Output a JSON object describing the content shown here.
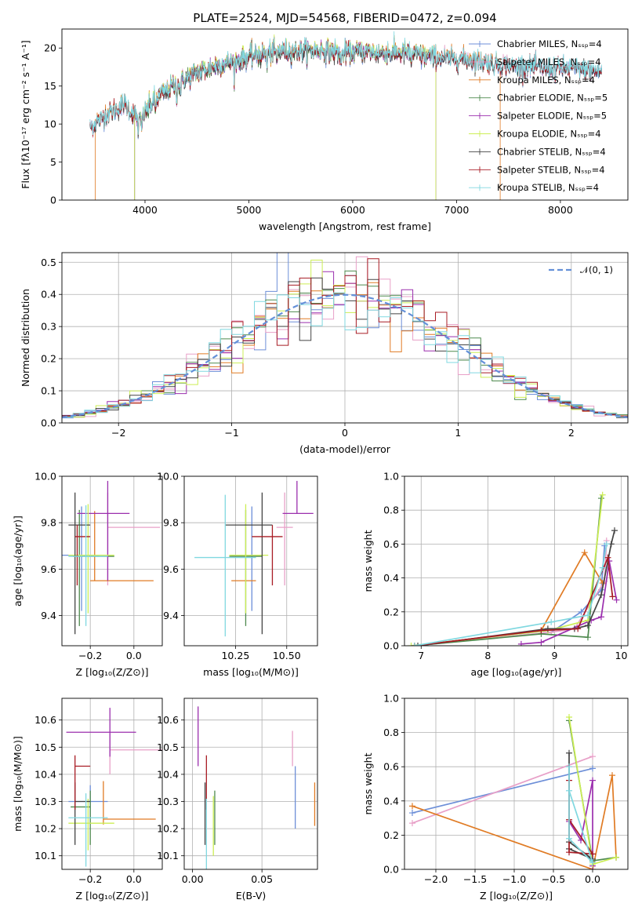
{
  "colors": {
    "chabrier_miles": "#6d8fd8",
    "salpeter_miles": "#e8a0c8",
    "kroupa_miles": "#e07b24",
    "chabrier_elodie": "#4e8a4e",
    "salpeter_elodie": "#9b2fae",
    "kroupa_elodie": "#ccee55",
    "chabrier_stelib": "#444444",
    "salpeter_stelib": "#a81c24",
    "kroupa_stelib": "#80d8e0",
    "normal": "#6490d8"
  },
  "chart_data": [
    {
      "id": "spectrum",
      "type": "line",
      "title": "PLATE=2524, MJD=54568, FIBERID=0472, z=0.094",
      "xlabel": "wavelength [Angstrom, rest frame]",
      "ylabel": "Flux [fλ10⁻¹⁷ erg cm⁻² s⁻¹ A⁻¹]",
      "xlim": [
        3200,
        8650
      ],
      "ylim": [
        0,
        22.5
      ],
      "xticks": [
        4000,
        5000,
        6000,
        7000,
        8000
      ],
      "yticks": [
        0,
        5,
        10,
        15,
        20
      ],
      "legend_position": "right",
      "continuum": {
        "x": [
          3470,
          3600,
          3800,
          3950,
          4100,
          4300,
          4500,
          4700,
          4900,
          5100,
          5300,
          5500,
          5700,
          5900,
          6100,
          6300,
          6500,
          6700,
          6900,
          7100,
          7300,
          7500,
          7700,
          7900,
          8100,
          8300
        ],
        "y": [
          9.5,
          11.0,
          12.6,
          10.5,
          13.3,
          15.2,
          16.8,
          17.7,
          18.5,
          19.2,
          19.6,
          19.6,
          19.7,
          19.3,
          19.6,
          19.3,
          19.4,
          19.0,
          18.6,
          18.6,
          18.1,
          17.7,
          17.6,
          17.3,
          17.4,
          17.0
        ]
      },
      "series": [
        {
          "name": "Chabrier MILES, Nₛₛₚ=4",
          "color_key": "chabrier_miles",
          "xmin": 3470,
          "xmax": 8400
        },
        {
          "name": "Salpeter MILES, Nₛₛₚ=4",
          "color_key": "salpeter_miles",
          "xmin": 3470,
          "xmax": 8400
        },
        {
          "name": "Kroupa MILES, Nₛₛₚ=4",
          "color_key": "kroupa_miles",
          "xmin": 3520,
          "xmax": 7420
        },
        {
          "name": "Chabrier ELODIE, Nₛₛₚ=5",
          "color_key": "chabrier_elodie",
          "xmin": 3900,
          "xmax": 6800
        },
        {
          "name": "Salpeter ELODIE, Nₛₛₚ=5",
          "color_key": "salpeter_elodie",
          "xmin": 3900,
          "xmax": 6800
        },
        {
          "name": "Kroupa ELODIE, Nₛₛₚ=4",
          "color_key": "kroupa_elodie",
          "xmin": 3900,
          "xmax": 6800
        },
        {
          "name": "Chabrier STELIB, Nₛₛₚ=4",
          "color_key": "chabrier_stelib",
          "xmin": 3470,
          "xmax": 8400
        },
        {
          "name": "Salpeter STELIB, Nₛₛₚ=4",
          "color_key": "salpeter_stelib",
          "xmin": 3470,
          "xmax": 8400
        },
        {
          "name": "Kroupa STELIB, Nₛₛₚ=4",
          "color_key": "kroupa_stelib",
          "xmin": 3470,
          "xmax": 8400
        }
      ]
    },
    {
      "id": "residuals",
      "type": "line",
      "xlabel": "(data-model)/error",
      "ylabel": "Normed distribution",
      "xlim": [
        -2.5,
        2.5
      ],
      "ylim": [
        0,
        0.53
      ],
      "xticks": [
        -2,
        -1,
        0,
        1,
        2
      ],
      "yticks": [
        0,
        0.1,
        0.2,
        0.3,
        0.4,
        0.5
      ],
      "grid": true,
      "legend": {
        "label": "𝒩(0, 1)",
        "position": "top-right"
      },
      "bin_width": 0.1
    },
    {
      "id": "age_vs_z",
      "type": "scatter",
      "xlabel": "Z [log₁₀(Z/Z⊙)]",
      "ylabel": "age  [log₁₀(age/yr)]",
      "xlim": [
        -0.33,
        0.13
      ],
      "ylim": [
        9.27,
        10.0
      ],
      "xticks": [
        -0.2,
        0.0
      ],
      "yticks": [
        9.4,
        9.6,
        9.8,
        10.0
      ],
      "grid": true,
      "points": [
        {
          "color_key": "chabrier_miles",
          "x": -0.24,
          "y": 9.66,
          "xerr": [
            0.09,
            0.08
          ],
          "yerr": [
            0.24,
            0.21
          ]
        },
        {
          "color_key": "salpeter_miles",
          "x": -0.12,
          "y": 9.78,
          "xerr": [
            0.0,
            0.24
          ],
          "yerr": [
            0.25,
            0.15
          ]
        },
        {
          "color_key": "kroupa_miles",
          "x": -0.18,
          "y": 9.55,
          "xerr": [
            0.02,
            0.27
          ],
          "yerr": [
            0.0,
            0.3
          ]
        },
        {
          "color_key": "chabrier_elodie",
          "x": -0.25,
          "y": 9.655,
          "xerr": [
            0.03,
            0.16
          ],
          "yerr": [
            0.3,
            0.2
          ]
        },
        {
          "color_key": "salpeter_elodie",
          "x": -0.12,
          "y": 9.84,
          "xerr": [
            0.14,
            0.1
          ],
          "yerr": [
            0.29,
            0.14
          ]
        },
        {
          "color_key": "kroupa_elodie",
          "x": -0.21,
          "y": 9.66,
          "xerr": [
            0.09,
            0.12
          ],
          "yerr": [
            0.25,
            0.22
          ]
        },
        {
          "color_key": "chabrier_stelib",
          "x": -0.27,
          "y": 9.79,
          "xerr": [
            0.03,
            0.07
          ],
          "yerr": [
            0.47,
            0.14
          ]
        },
        {
          "color_key": "salpeter_stelib",
          "x": -0.26,
          "y": 9.74,
          "xerr": [
            0.01,
            0.06
          ],
          "yerr": [
            0.21,
            0.05
          ]
        },
        {
          "color_key": "kroupa_stelib",
          "x": -0.22,
          "y": 9.655,
          "xerr": [
            0.08,
            0.1
          ],
          "yerr": [
            0.3,
            0.22
          ]
        }
      ]
    },
    {
      "id": "age_vs_mass",
      "type": "scatter",
      "xlabel": "mass [log₁₀(M/M⊙)]",
      "xlim": [
        10.0,
        10.65
      ],
      "ylim": [
        9.27,
        10.0
      ],
      "xticks": [
        10.25,
        10.5
      ],
      "yticks": [
        9.4,
        9.6,
        9.8,
        10.0
      ],
      "grid": true,
      "points": [
        {
          "color_key": "chabrier_miles",
          "x": 10.33,
          "y": 9.66,
          "xerr": [
            0.1,
            0.06
          ],
          "yerr": [
            0.24,
            0.21
          ]
        },
        {
          "color_key": "salpeter_miles",
          "x": 10.49,
          "y": 9.78,
          "xerr": [
            0.04,
            0.04
          ],
          "yerr": [
            0.25,
            0.15
          ]
        },
        {
          "color_key": "kroupa_miles",
          "x": 10.24,
          "y": 9.55,
          "xerr": [
            0.01,
            0.11
          ],
          "yerr": [
            0.0,
            0.0
          ]
        },
        {
          "color_key": "chabrier_elodie",
          "x": 10.3,
          "y": 9.655,
          "xerr": [
            0.08,
            0.08
          ],
          "yerr": [
            0.3,
            0.2
          ]
        },
        {
          "color_key": "salpeter_elodie",
          "x": 10.55,
          "y": 9.84,
          "xerr": [
            0.07,
            0.08
          ],
          "yerr": [
            0.0,
            0.14
          ]
        },
        {
          "color_key": "kroupa_elodie",
          "x": 10.3,
          "y": 9.66,
          "xerr": [
            0.08,
            0.11
          ],
          "yerr": [
            0.25,
            0.22
          ]
        },
        {
          "color_key": "chabrier_stelib",
          "x": 10.38,
          "y": 9.79,
          "xerr": [
            0.18,
            0.05
          ],
          "yerr": [
            0.47,
            0.14
          ]
        },
        {
          "color_key": "salpeter_stelib",
          "x": 10.43,
          "y": 9.74,
          "xerr": [
            0.1,
            0.05
          ],
          "yerr": [
            0.21,
            0.05
          ]
        },
        {
          "color_key": "kroupa_stelib",
          "x": 10.2,
          "y": 9.65,
          "xerr": [
            0.15,
            0.15
          ],
          "yerr": [
            0.34,
            0.27
          ]
        }
      ]
    },
    {
      "id": "weight_vs_age",
      "type": "line",
      "xlabel": "age  [log₁₀(age/yr)]",
      "ylabel": "mass weight",
      "xlim": [
        6.75,
        10.1
      ],
      "ylim": [
        0,
        1.0
      ],
      "xticks": [
        7,
        8,
        9,
        10
      ],
      "yticks": [
        0,
        0.2,
        0.4,
        0.6,
        0.8,
        1.0
      ],
      "grid": true,
      "series": [
        {
          "color_key": "chabrier_miles",
          "x": [
            6.9,
            8.95,
            9.4,
            9.7,
            9.75
          ],
          "y": [
            0.0,
            0.08,
            0.2,
            0.33,
            0.59
          ]
        },
        {
          "color_key": "salpeter_miles",
          "x": [
            6.9,
            8.95,
            9.3,
            9.75,
            9.78
          ],
          "y": [
            0.0,
            0.08,
            0.1,
            0.38,
            0.62
          ]
        },
        {
          "color_key": "kroupa_miles",
          "x": [
            6.9,
            8.8,
            9.45,
            9.72
          ],
          "y": [
            0.0,
            0.09,
            0.55,
            0.37
          ]
        },
        {
          "color_key": "chabrier_elodie",
          "x": [
            6.9,
            8.8,
            9.5,
            9.7
          ],
          "y": [
            0.0,
            0.07,
            0.05,
            0.87
          ]
        },
        {
          "color_key": "salpeter_elodie",
          "x": [
            8.5,
            8.8,
            9.55,
            9.7,
            9.82,
            9.93
          ],
          "y": [
            0.01,
            0.02,
            0.15,
            0.17,
            0.5,
            0.27
          ]
        },
        {
          "color_key": "kroupa_elodie",
          "x": [
            6.85,
            8.9,
            9.5,
            9.72
          ],
          "y": [
            0.0,
            0.09,
            0.15,
            0.89
          ]
        },
        {
          "color_key": "chabrier_stelib",
          "x": [
            6.95,
            8.9,
            9.3,
            9.5,
            9.7,
            9.85,
            9.9
          ],
          "y": [
            0.0,
            0.1,
            0.1,
            0.12,
            0.3,
            0.6,
            0.68
          ]
        },
        {
          "color_key": "salpeter_stelib",
          "x": [
            6.9,
            8.8,
            9.35,
            9.8,
            9.87
          ],
          "y": [
            0.0,
            0.09,
            0.1,
            0.52,
            0.29
          ]
        },
        {
          "color_key": "kroupa_stelib",
          "x": [
            6.9,
            8.95,
            9.5,
            9.72,
            9.78
          ],
          "y": [
            0.0,
            0.14,
            0.18,
            0.46,
            0.6
          ]
        }
      ]
    },
    {
      "id": "mass_vs_z",
      "type": "scatter",
      "xlabel": "Z [log₁₀(Z/Z⊙)]",
      "ylabel": "mass [log₁₀(M/M⊙)]",
      "xlim": [
        -0.33,
        0.13
      ],
      "ylim": [
        10.05,
        10.68
      ],
      "xticks": [
        -0.2,
        0.0
      ],
      "yticks": [
        10.1,
        10.2,
        10.3,
        10.4,
        10.5,
        10.6
      ],
      "grid": true,
      "points": [
        {
          "color_key": "chabrier_miles",
          "x": -0.2,
          "y": 10.3,
          "xerr": [
            0.1,
            0.08
          ],
          "yerr": [
            0.06,
            0.06
          ]
        },
        {
          "color_key": "salpeter_miles",
          "x": -0.11,
          "y": 10.49,
          "xerr": [
            0.0,
            0.25
          ],
          "yerr": [
            0.09,
            0.06
          ]
        },
        {
          "color_key": "kroupa_miles",
          "x": -0.14,
          "y": 10.235,
          "xerr": [
            0.0,
            0.24
          ],
          "yerr": [
            0.02,
            0.14
          ]
        },
        {
          "color_key": "chabrier_elodie",
          "x": -0.2,
          "y": 10.28,
          "xerr": [
            0.09,
            0.0
          ],
          "yerr": [
            0.14,
            0.06
          ]
        },
        {
          "color_key": "salpeter_elodie",
          "x": -0.11,
          "y": 10.555,
          "xerr": [
            0.2,
            0.12
          ],
          "yerr": [
            0.09,
            0.09
          ]
        },
        {
          "color_key": "kroupa_elodie",
          "x": -0.21,
          "y": 10.22,
          "xerr": [
            0.09,
            0.12
          ],
          "yerr": [
            0.1,
            0.09
          ]
        },
        {
          "color_key": "chabrier_stelib",
          "x": -0.27,
          "y": 10.3,
          "xerr": [
            0.0,
            0.07
          ],
          "yerr": [
            0.16,
            0.07
          ]
        },
        {
          "color_key": "salpeter_stelib",
          "x": -0.27,
          "y": 10.43,
          "xerr": [
            0.0,
            0.07
          ],
          "yerr": [
            0.16,
            0.04
          ]
        },
        {
          "color_key": "kroupa_stelib",
          "x": -0.22,
          "y": 10.24,
          "xerr": [
            0.08,
            0.1
          ],
          "yerr": [
            0.18,
            0.09
          ]
        }
      ]
    },
    {
      "id": "mass_vs_ebv",
      "type": "scatter",
      "xlabel": "E(B-V)",
      "xlim": [
        -0.006,
        0.09
      ],
      "ylim": [
        10.05,
        10.68
      ],
      "xticks": [
        0.0,
        0.05
      ],
      "yticks": [
        10.1,
        10.2,
        10.3,
        10.4,
        10.5,
        10.6
      ],
      "grid": true,
      "points": [
        {
          "color_key": "chabrier_miles",
          "x": 0.074,
          "y": 10.3,
          "yerr": [
            0.1,
            0.13
          ]
        },
        {
          "color_key": "salpeter_miles",
          "x": 0.072,
          "y": 10.49,
          "yerr": [
            0.06,
            0.07
          ]
        },
        {
          "color_key": "kroupa_miles",
          "x": 0.088,
          "y": 10.29,
          "yerr": [
            0.08,
            0.08
          ]
        },
        {
          "color_key": "chabrier_elodie",
          "x": 0.016,
          "y": 10.28,
          "yerr": [
            0.14,
            0.06
          ]
        },
        {
          "color_key": "salpeter_elodie",
          "x": 0.004,
          "y": 10.55,
          "yerr": [
            0.12,
            0.1
          ]
        },
        {
          "color_key": "kroupa_elodie",
          "x": 0.015,
          "y": 10.22,
          "yerr": [
            0.12,
            0.1
          ]
        },
        {
          "color_key": "chabrier_stelib",
          "x": 0.009,
          "y": 10.3,
          "yerr": [
            0.16,
            0.07
          ]
        },
        {
          "color_key": "salpeter_stelib",
          "x": 0.01,
          "y": 10.43,
          "yerr": [
            0.16,
            0.04
          ]
        },
        {
          "color_key": "kroupa_stelib",
          "x": 0.01,
          "y": 10.2,
          "yerr": [
            0.15,
            0.11
          ]
        }
      ]
    },
    {
      "id": "weight_vs_z",
      "type": "line",
      "xlabel": "Z [log₁₀(Z/Z⊙)]",
      "ylabel": "mass weight",
      "xlim": [
        -2.4,
        0.45
      ],
      "ylim": [
        0,
        1.0
      ],
      "xticks": [
        -2.0,
        -1.5,
        -1.0,
        -0.5,
        0.0
      ],
      "yticks": [
        0,
        0.2,
        0.4,
        0.6,
        0.8,
        1.0
      ],
      "grid": true,
      "series": [
        {
          "color_key": "chabrier_miles",
          "x": [
            -2.3,
            0.0
          ],
          "y": [
            0.33,
            0.59
          ]
        },
        {
          "color_key": "salpeter_miles",
          "x": [
            -2.3,
            0.0
          ],
          "y": [
            0.27,
            0.66
          ]
        },
        {
          "color_key": "kroupa_miles",
          "x": [
            -2.3,
            0.0,
            0.25,
            0.3
          ],
          "y": [
            0.37,
            0.0,
            0.55,
            0.07
          ]
        },
        {
          "color_key": "chabrier_elodie",
          "x": [
            -0.3,
            0.0,
            0.3
          ],
          "y": [
            0.87,
            0.05,
            0.07
          ]
        },
        {
          "color_key": "salpeter_elodie",
          "x": [
            -0.3,
            -0.15,
            0.0,
            0.0
          ],
          "y": [
            0.28,
            0.17,
            0.52,
            0.02
          ]
        },
        {
          "color_key": "kroupa_elodie",
          "x": [
            -0.3,
            0.0,
            0.3
          ],
          "y": [
            0.89,
            0.03,
            0.07
          ]
        },
        {
          "color_key": "chabrier_stelib",
          "x": [
            -0.3,
            -0.3,
            0.0,
            -0.3
          ],
          "y": [
            0.68,
            0.16,
            0.06,
            0.12
          ]
        },
        {
          "color_key": "salpeter_stelib",
          "x": [
            -0.3,
            -0.3,
            0.0,
            -0.3
          ],
          "y": [
            0.52,
            0.1,
            0.09,
            0.29
          ]
        },
        {
          "color_key": "kroupa_stelib",
          "x": [
            -0.3,
            -0.3,
            0.0,
            -0.3
          ],
          "y": [
            0.6,
            0.18,
            0.04,
            0.46
          ]
        }
      ]
    }
  ]
}
